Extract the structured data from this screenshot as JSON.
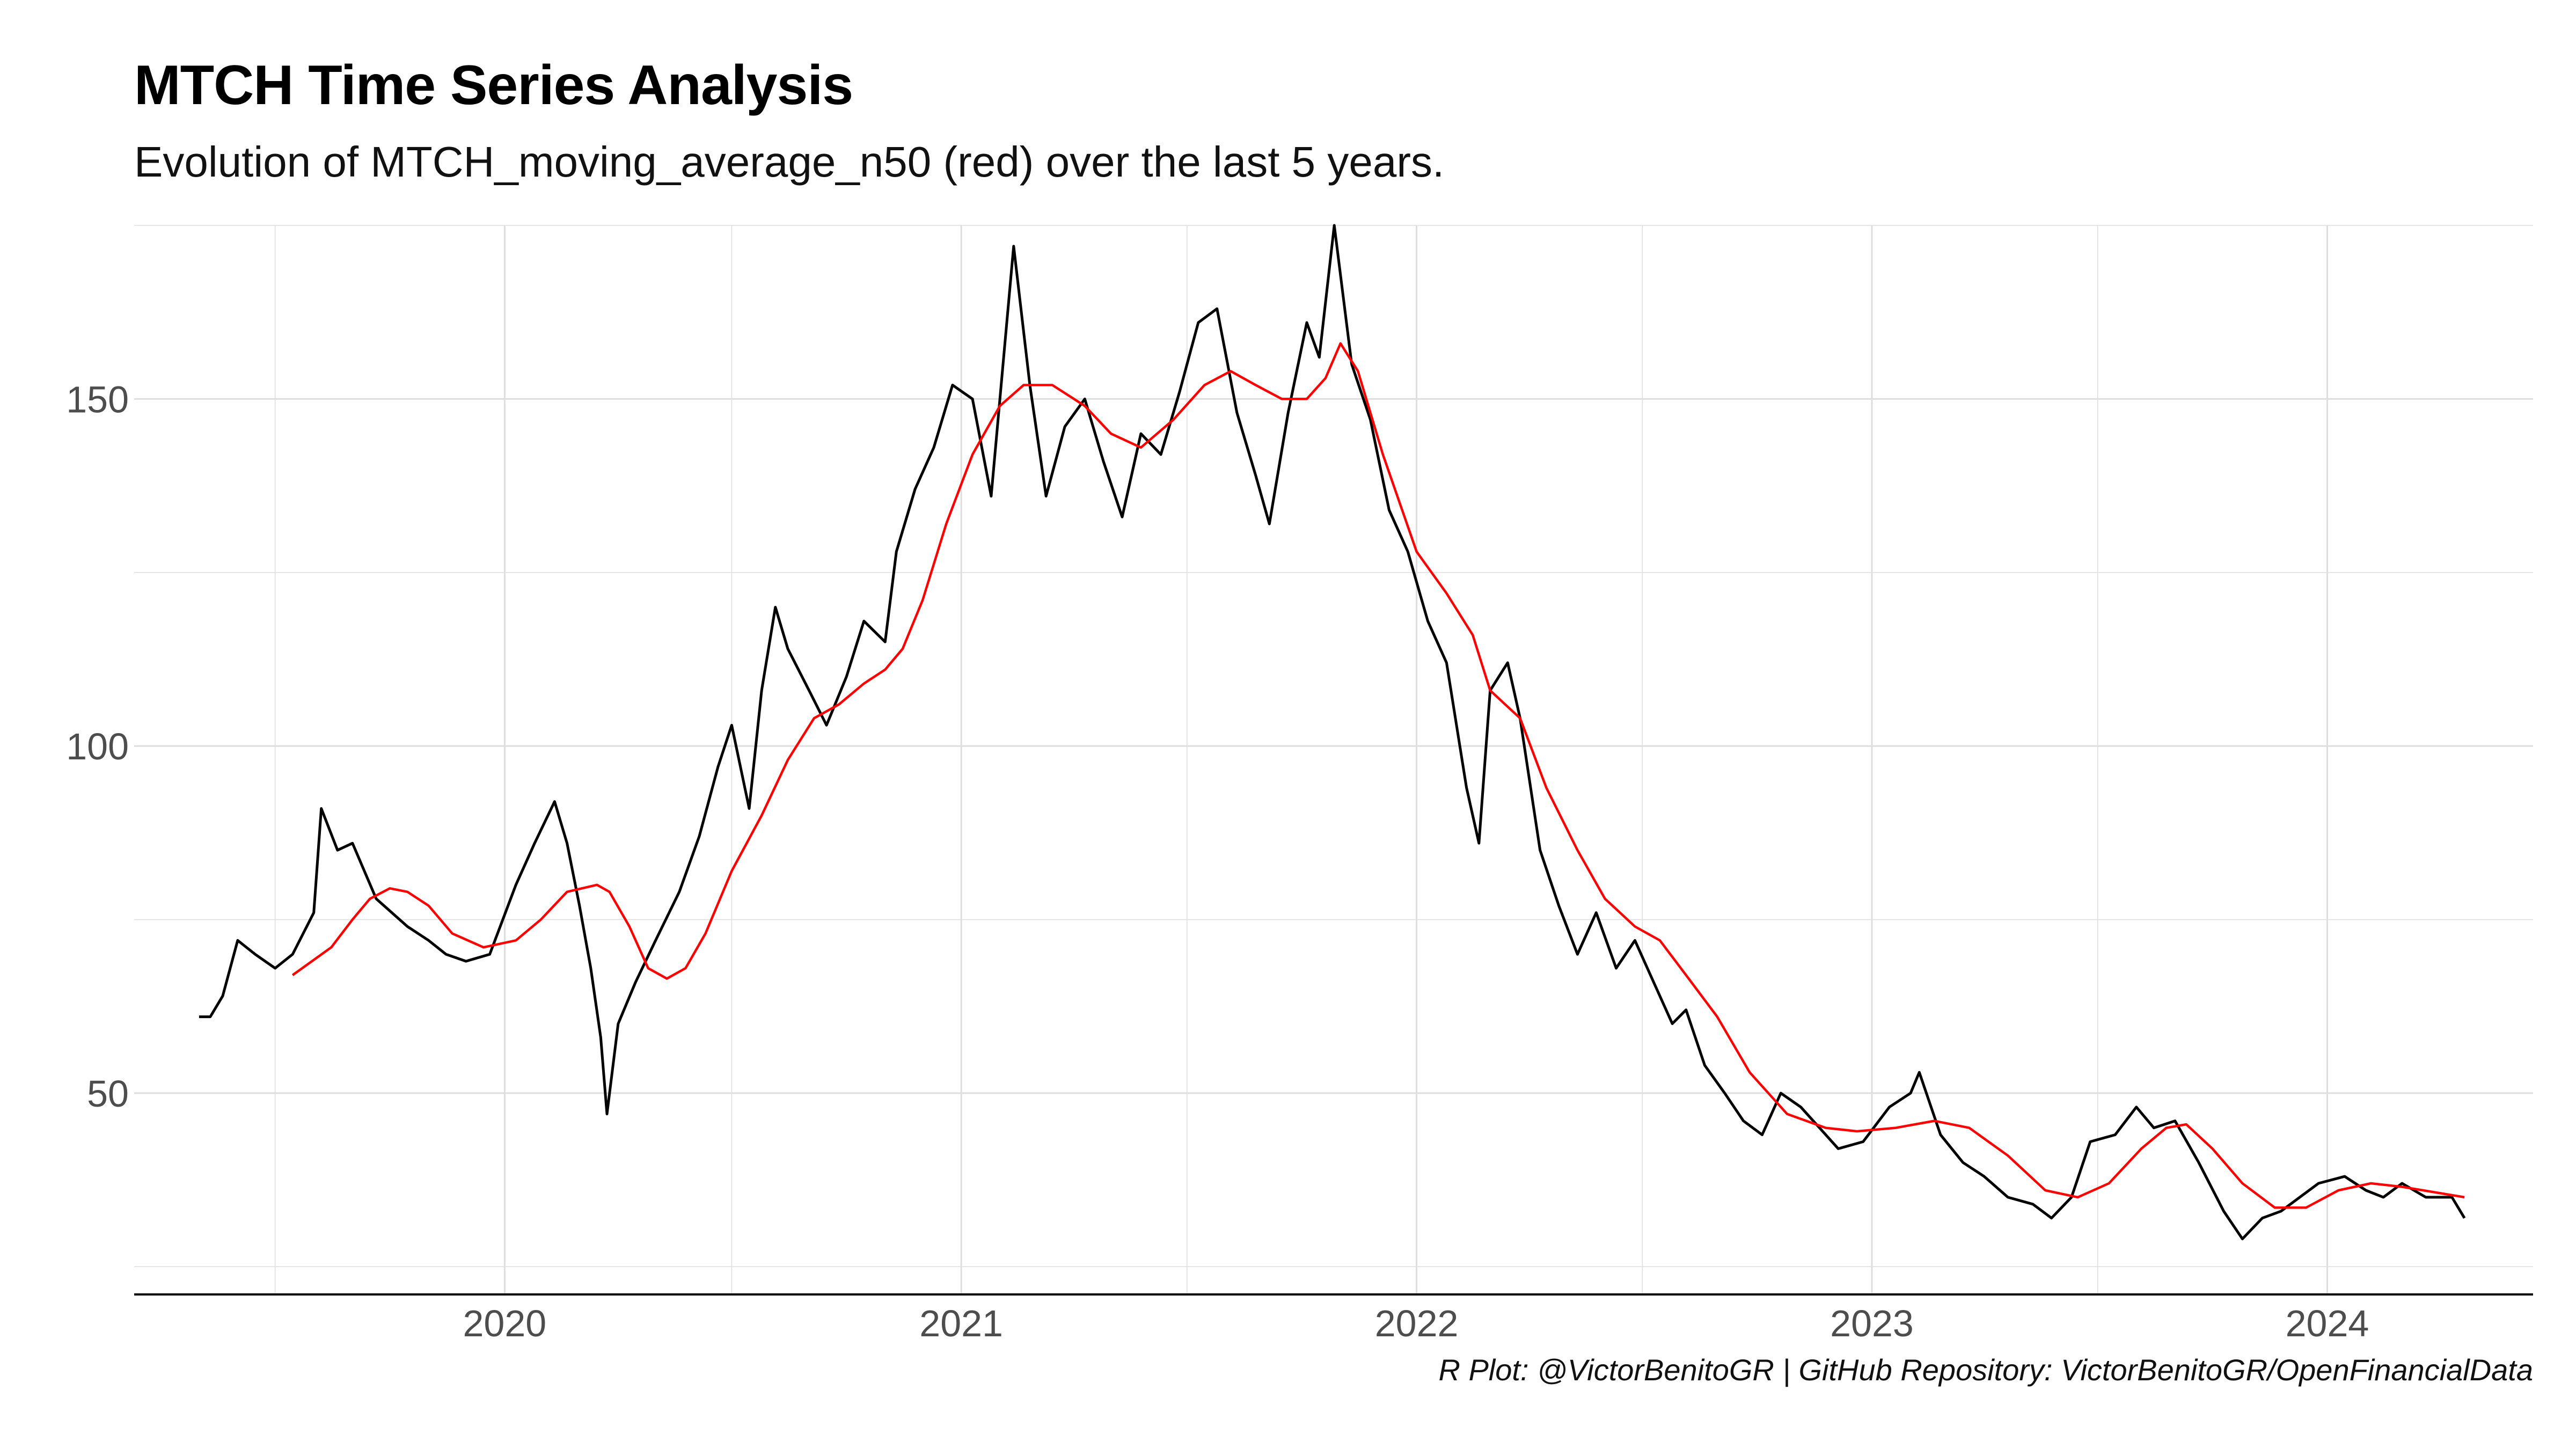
{
  "chart_data": {
    "type": "line",
    "title": "MTCH Time Series Analysis",
    "subtitle": "Evolution of MTCH_moving_average_n50  (red) over the last 5 years.",
    "caption": "R Plot: @VictorBenitoGR | GitHub Repository:  VictorBenitoGR/OpenFinancialData",
    "xlabel": "",
    "ylabel": "",
    "xlim": [
      "2019-03-10",
      "2024-06-14"
    ],
    "ylim": [
      21,
      175
    ],
    "x_ticks": [
      "2020",
      "2021",
      "2022",
      "2023",
      "2024"
    ],
    "y_ticks": [
      50,
      100,
      150
    ],
    "grid": true,
    "colors": {
      "price": "#000000",
      "moving_average": "#ff0000",
      "grid": "#dedede",
      "axis": "#000000"
    },
    "series": [
      {
        "name": "MTCH",
        "color": "#000000",
        "points": [
          [
            "2019-05-01",
            61
          ],
          [
            "2019-05-10",
            61
          ],
          [
            "2019-05-20",
            64
          ],
          [
            "2019-06-01",
            72
          ],
          [
            "2019-06-15",
            70
          ],
          [
            "2019-07-01",
            68
          ],
          [
            "2019-07-15",
            70
          ],
          [
            "2019-08-01",
            76
          ],
          [
            "2019-08-07",
            91
          ],
          [
            "2019-08-20",
            85
          ],
          [
            "2019-09-01",
            86
          ],
          [
            "2019-09-20",
            78
          ],
          [
            "2019-10-15",
            74
          ],
          [
            "2019-11-01",
            72
          ],
          [
            "2019-11-15",
            70
          ],
          [
            "2019-12-01",
            69
          ],
          [
            "2019-12-20",
            70
          ],
          [
            "2020-01-10",
            80
          ],
          [
            "2020-01-25",
            86
          ],
          [
            "2020-02-10",
            92
          ],
          [
            "2020-02-20",
            86
          ],
          [
            "2020-03-01",
            77
          ],
          [
            "2020-03-10",
            68
          ],
          [
            "2020-03-18",
            58
          ],
          [
            "2020-03-23",
            47
          ],
          [
            "2020-04-01",
            60
          ],
          [
            "2020-04-15",
            66
          ],
          [
            "2020-05-01",
            72
          ],
          [
            "2020-05-20",
            79
          ],
          [
            "2020-06-05",
            87
          ],
          [
            "2020-06-20",
            97
          ],
          [
            "2020-07-01",
            103
          ],
          [
            "2020-07-15",
            91
          ],
          [
            "2020-07-25",
            108
          ],
          [
            "2020-08-05",
            120
          ],
          [
            "2020-08-15",
            114
          ],
          [
            "2020-09-01",
            108
          ],
          [
            "2020-09-15",
            103
          ],
          [
            "2020-10-01",
            110
          ],
          [
            "2020-10-15",
            118
          ],
          [
            "2020-11-01",
            115
          ],
          [
            "2020-11-10",
            128
          ],
          [
            "2020-11-25",
            137
          ],
          [
            "2020-12-10",
            143
          ],
          [
            "2020-12-25",
            152
          ],
          [
            "2021-01-10",
            150
          ],
          [
            "2021-01-25",
            136
          ],
          [
            "2021-02-05",
            158
          ],
          [
            "2021-02-12",
            172
          ],
          [
            "2021-02-25",
            152
          ],
          [
            "2021-03-10",
            136
          ],
          [
            "2021-03-25",
            146
          ],
          [
            "2021-04-10",
            150
          ],
          [
            "2021-04-25",
            141
          ],
          [
            "2021-05-10",
            133
          ],
          [
            "2021-05-25",
            145
          ],
          [
            "2021-06-10",
            142
          ],
          [
            "2021-06-25",
            151
          ],
          [
            "2021-07-10",
            161
          ],
          [
            "2021-07-25",
            163
          ],
          [
            "2021-08-10",
            148
          ],
          [
            "2021-08-25",
            139
          ],
          [
            "2021-09-05",
            132
          ],
          [
            "2021-09-20",
            148
          ],
          [
            "2021-10-05",
            161
          ],
          [
            "2021-10-15",
            156
          ],
          [
            "2021-10-27",
            175
          ],
          [
            "2021-11-10",
            155
          ],
          [
            "2021-11-25",
            147
          ],
          [
            "2021-12-10",
            134
          ],
          [
            "2021-12-25",
            128
          ],
          [
            "2022-01-10",
            118
          ],
          [
            "2022-01-25",
            112
          ],
          [
            "2022-02-10",
            94
          ],
          [
            "2022-02-20",
            86
          ],
          [
            "2022-03-01",
            108
          ],
          [
            "2022-03-15",
            112
          ],
          [
            "2022-03-25",
            104
          ],
          [
            "2022-04-10",
            85
          ],
          [
            "2022-04-25",
            77
          ],
          [
            "2022-05-10",
            70
          ],
          [
            "2022-05-25",
            76
          ],
          [
            "2022-06-10",
            68
          ],
          [
            "2022-06-25",
            72
          ],
          [
            "2022-07-10",
            66
          ],
          [
            "2022-07-25",
            60
          ],
          [
            "2022-08-05",
            62
          ],
          [
            "2022-08-20",
            54
          ],
          [
            "2022-09-05",
            50
          ],
          [
            "2022-09-20",
            46
          ],
          [
            "2022-10-05",
            44
          ],
          [
            "2022-10-20",
            50
          ],
          [
            "2022-11-05",
            48
          ],
          [
            "2022-11-20",
            45
          ],
          [
            "2022-12-05",
            42
          ],
          [
            "2022-12-25",
            43
          ],
          [
            "2023-01-15",
            48
          ],
          [
            "2023-02-01",
            50
          ],
          [
            "2023-02-08",
            53
          ],
          [
            "2023-02-25",
            44
          ],
          [
            "2023-03-15",
            40
          ],
          [
            "2023-04-01",
            38
          ],
          [
            "2023-04-20",
            35
          ],
          [
            "2023-05-10",
            34
          ],
          [
            "2023-05-25",
            32
          ],
          [
            "2023-06-10",
            35
          ],
          [
            "2023-06-25",
            43
          ],
          [
            "2023-07-15",
            44
          ],
          [
            "2023-08-01",
            48
          ],
          [
            "2023-08-15",
            45
          ],
          [
            "2023-09-01",
            46
          ],
          [
            "2023-09-20",
            40
          ],
          [
            "2023-10-10",
            33
          ],
          [
            "2023-10-25",
            29
          ],
          [
            "2023-11-10",
            32
          ],
          [
            "2023-11-25",
            33
          ],
          [
            "2023-12-10",
            35
          ],
          [
            "2023-12-25",
            37
          ],
          [
            "2024-01-15",
            38
          ],
          [
            "2024-02-01",
            36
          ],
          [
            "2024-02-15",
            35
          ],
          [
            "2024-03-01",
            37
          ],
          [
            "2024-03-20",
            35
          ],
          [
            "2024-04-10",
            35
          ],
          [
            "2024-04-20",
            32
          ]
        ]
      },
      {
        "name": "MTCH_moving_average_n50",
        "color": "#ff0000",
        "points": [
          [
            "2019-07-15",
            67
          ],
          [
            "2019-08-15",
            71
          ],
          [
            "2019-09-01",
            75
          ],
          [
            "2019-09-15",
            78
          ],
          [
            "2019-10-01",
            79.5
          ],
          [
            "2019-10-15",
            79
          ],
          [
            "2019-11-01",
            77
          ],
          [
            "2019-11-20",
            73
          ],
          [
            "2019-12-15",
            71
          ],
          [
            "2020-01-10",
            72
          ],
          [
            "2020-01-30",
            75
          ],
          [
            "2020-02-20",
            79
          ],
          [
            "2020-03-15",
            80
          ],
          [
            "2020-03-25",
            79
          ],
          [
            "2020-04-10",
            74
          ],
          [
            "2020-04-25",
            68
          ],
          [
            "2020-05-10",
            66.5
          ],
          [
            "2020-05-25",
            68
          ],
          [
            "2020-06-10",
            73
          ],
          [
            "2020-07-01",
            82
          ],
          [
            "2020-07-25",
            90
          ],
          [
            "2020-08-15",
            98
          ],
          [
            "2020-09-05",
            104
          ],
          [
            "2020-09-25",
            106
          ],
          [
            "2020-10-15",
            109
          ],
          [
            "2020-11-01",
            111
          ],
          [
            "2020-11-15",
            114
          ],
          [
            "2020-12-01",
            121
          ],
          [
            "2020-12-20",
            132
          ],
          [
            "2021-01-10",
            142
          ],
          [
            "2021-02-01",
            149
          ],
          [
            "2021-02-20",
            152
          ],
          [
            "2021-03-15",
            152
          ],
          [
            "2021-04-10",
            149
          ],
          [
            "2021-05-01",
            145
          ],
          [
            "2021-05-25",
            143
          ],
          [
            "2021-06-20",
            147
          ],
          [
            "2021-07-15",
            152
          ],
          [
            "2021-08-05",
            154
          ],
          [
            "2021-08-25",
            152
          ],
          [
            "2021-09-15",
            150
          ],
          [
            "2021-10-05",
            150
          ],
          [
            "2021-10-20",
            153
          ],
          [
            "2021-11-01",
            158
          ],
          [
            "2021-11-15",
            154
          ],
          [
            "2021-12-05",
            142
          ],
          [
            "2022-01-01",
            128
          ],
          [
            "2022-01-25",
            122
          ],
          [
            "2022-02-15",
            116
          ],
          [
            "2022-03-01",
            108
          ],
          [
            "2022-03-25",
            104
          ],
          [
            "2022-04-15",
            94
          ],
          [
            "2022-05-10",
            85
          ],
          [
            "2022-06-01",
            78
          ],
          [
            "2022-06-25",
            74
          ],
          [
            "2022-07-15",
            72
          ],
          [
            "2022-08-05",
            67
          ],
          [
            "2022-08-30",
            61
          ],
          [
            "2022-09-25",
            53
          ],
          [
            "2022-10-25",
            47
          ],
          [
            "2022-11-25",
            45
          ],
          [
            "2022-12-20",
            44.5
          ],
          [
            "2023-01-20",
            45
          ],
          [
            "2023-02-20",
            46
          ],
          [
            "2023-03-20",
            45
          ],
          [
            "2023-04-20",
            41
          ],
          [
            "2023-05-20",
            36
          ],
          [
            "2023-06-15",
            35
          ],
          [
            "2023-07-10",
            37
          ],
          [
            "2023-08-05",
            42
          ],
          [
            "2023-08-25",
            45
          ],
          [
            "2023-09-10",
            45.5
          ],
          [
            "2023-10-01",
            42
          ],
          [
            "2023-10-25",
            37
          ],
          [
            "2023-11-20",
            33.5
          ],
          [
            "2023-12-15",
            33.5
          ],
          [
            "2024-01-10",
            36
          ],
          [
            "2024-02-05",
            37
          ],
          [
            "2024-03-01",
            36.5
          ],
          [
            "2024-04-20",
            35
          ]
        ]
      }
    ]
  }
}
